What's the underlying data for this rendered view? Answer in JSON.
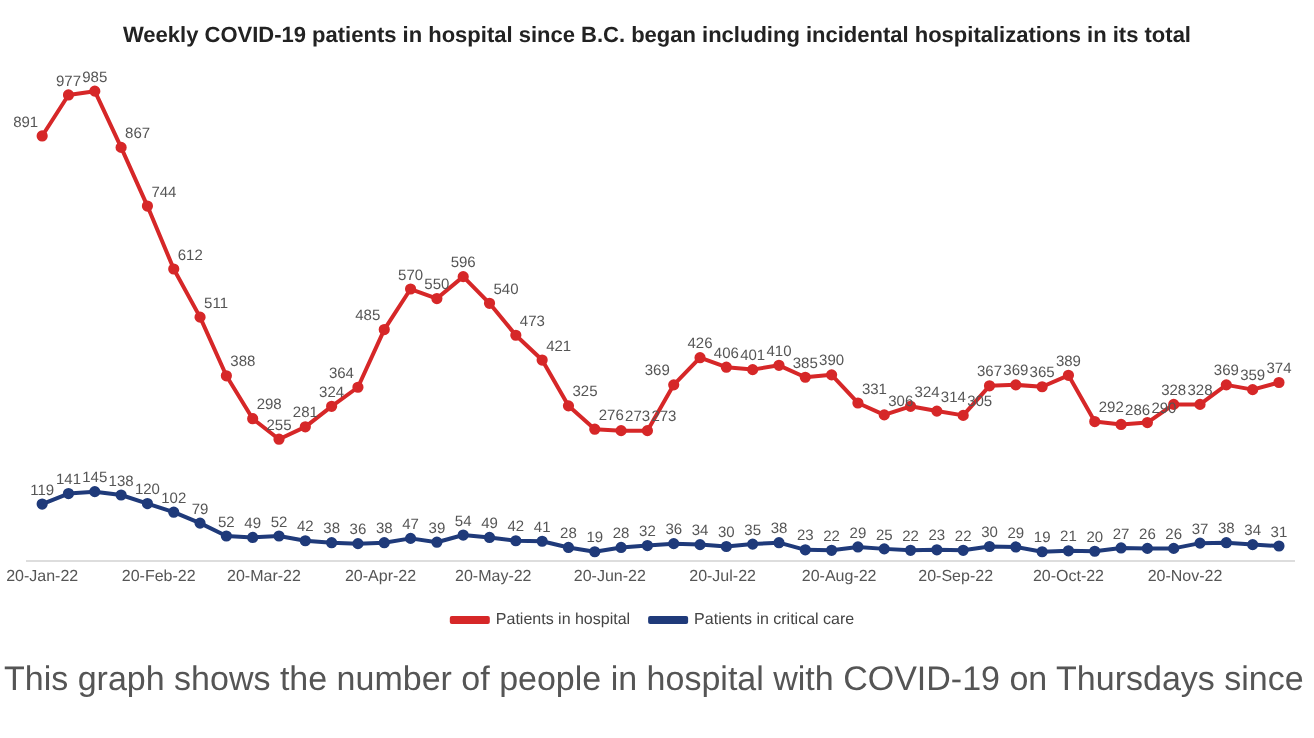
{
  "chart_data": {
    "type": "line",
    "title": "Weekly COVID-19 patients in hospital since B.C. began including incidental hospitalizations in its total",
    "x": [
      "2022-01-20",
      "2022-01-27",
      "2022-02-03",
      "2022-02-10",
      "2022-02-17",
      "2022-02-24",
      "2022-03-03",
      "2022-03-10",
      "2022-03-17",
      "2022-03-24",
      "2022-03-31",
      "2022-04-07",
      "2022-04-14",
      "2022-04-21",
      "2022-04-28",
      "2022-05-05",
      "2022-05-12",
      "2022-05-19",
      "2022-05-26",
      "2022-06-02",
      "2022-06-09",
      "2022-06-16",
      "2022-06-23",
      "2022-06-30",
      "2022-07-07",
      "2022-07-14",
      "2022-07-21",
      "2022-07-28",
      "2022-08-04",
      "2022-08-11",
      "2022-08-18",
      "2022-08-25",
      "2022-09-01",
      "2022-09-08",
      "2022-09-15",
      "2022-09-22",
      "2022-09-29",
      "2022-10-06",
      "2022-10-13",
      "2022-10-20",
      "2022-10-27",
      "2022-11-03",
      "2022-11-10",
      "2022-11-17",
      "2022-11-24",
      "2022-12-01",
      "2022-12-08",
      "2022-12-15"
    ],
    "series": [
      {
        "name": "Patients in hospital",
        "color": "#d62728",
        "values": [
          891,
          977,
          985,
          867,
          744,
          612,
          511,
          388,
          298,
          255,
          281,
          324,
          364,
          485,
          570,
          550,
          596,
          540,
          473,
          421,
          325,
          276,
          273,
          273,
          369,
          426,
          406,
          401,
          410,
          385,
          390,
          331,
          306,
          324,
          314,
          305,
          367,
          369,
          365,
          389,
          292,
          286,
          290,
          328,
          328,
          369,
          359,
          374
        ]
      },
      {
        "name": "Patients in critical care",
        "color": "#1f3a7a",
        "values": [
          119,
          141,
          145,
          138,
          120,
          102,
          79,
          52,
          49,
          52,
          42,
          38,
          36,
          38,
          47,
          39,
          54,
          49,
          42,
          41,
          28,
          19,
          28,
          32,
          36,
          34,
          30,
          35,
          38,
          23,
          22,
          29,
          25,
          22,
          23,
          22,
          30,
          29,
          19,
          21,
          20,
          27,
          26,
          26,
          37,
          38,
          34,
          31
        ]
      }
    ],
    "xlim": [
      "2022-01-16",
      "2022-12-19"
    ],
    "xticks": [
      {
        "value": "2022-01-20",
        "label": "20-Jan-22"
      },
      {
        "value": "2022-02-20",
        "label": "20-Feb-22"
      },
      {
        "value": "2022-03-20",
        "label": "20-Mar-22"
      },
      {
        "value": "2022-04-20",
        "label": "20-Apr-22"
      },
      {
        "value": "2022-05-20",
        "label": "20-May-22"
      },
      {
        "value": "2022-06-20",
        "label": "20-Jun-22"
      },
      {
        "value": "2022-07-20",
        "label": "20-Jul-22"
      },
      {
        "value": "2022-08-20",
        "label": "20-Aug-22"
      },
      {
        "value": "2022-09-20",
        "label": "20-Sep-22"
      },
      {
        "value": "2022-10-20",
        "label": "20-Oct-22"
      },
      {
        "value": "2022-11-20",
        "label": "20-Nov-22"
      }
    ],
    "tick_labels": "x",
    "grid": false,
    "legend": "bottom",
    "marker": "circle",
    "line_style": "solid",
    "data_labels": true,
    "annotations": [
      "This graph shows the number of people in hospital with COVID-19 on Thursdays since"
    ]
  }
}
